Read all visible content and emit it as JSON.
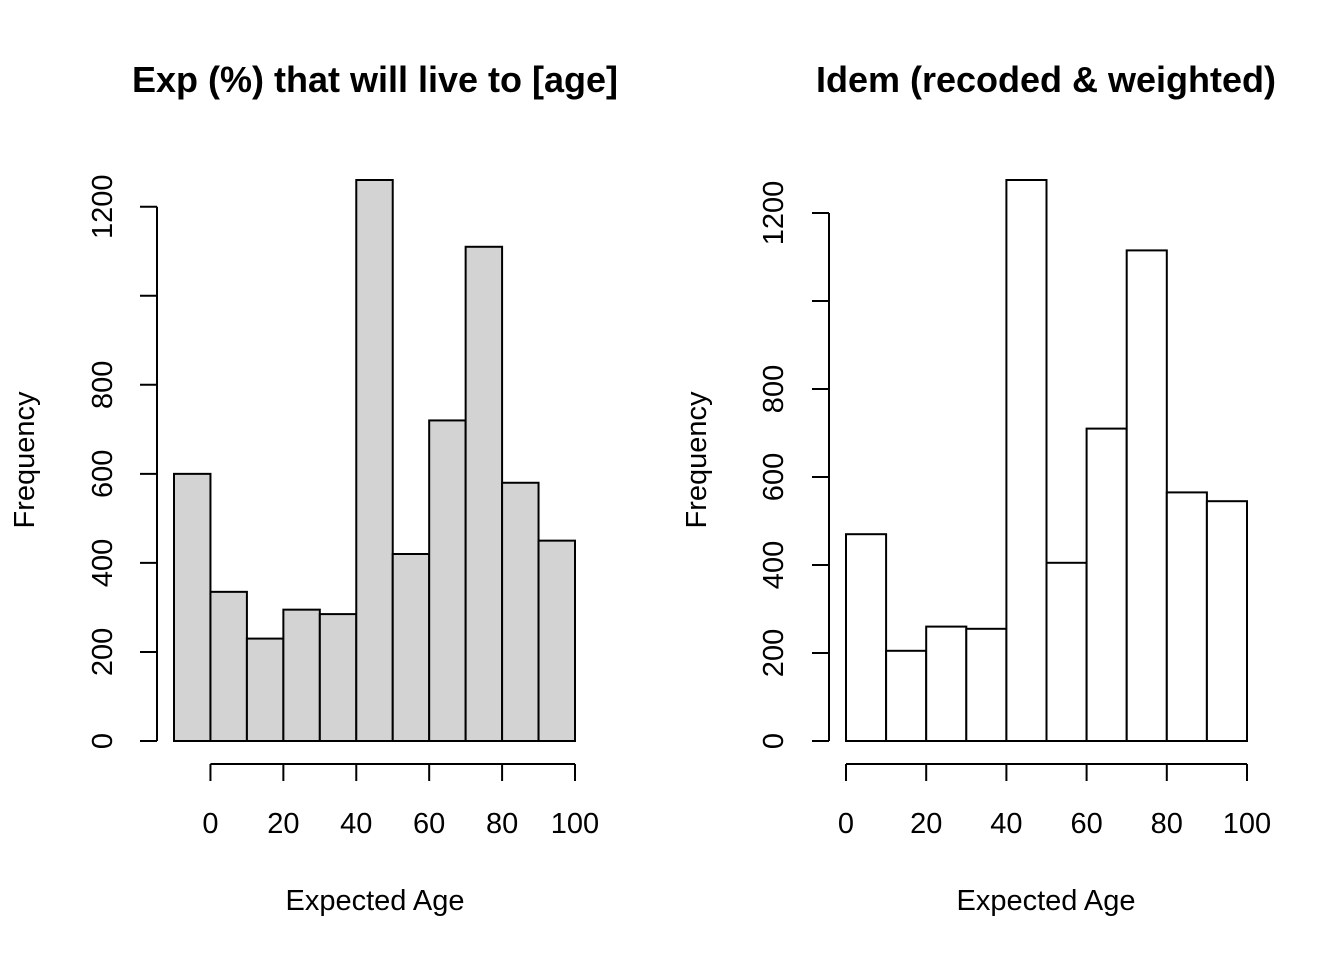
{
  "chart_data": [
    {
      "type": "bar",
      "title": "Exp (%) that will live to [age]",
      "xlabel": "Expected Age",
      "ylabel": "Frequency",
      "bar_fill": "#d3d3d3",
      "bar_stroke": "#000000",
      "xlim": [
        -10,
        100
      ],
      "ylim": [
        0,
        1260
      ],
      "x_ticks": [
        0,
        20,
        40,
        60,
        80,
        100
      ],
      "y_ticks": [
        0,
        200,
        400,
        600,
        800,
        1000,
        1200
      ],
      "y_tick_labels": [
        "0",
        "200",
        "400",
        "600",
        "800",
        "",
        "1200"
      ],
      "bins": [
        {
          "start": -10,
          "end": 0,
          "count": 600
        },
        {
          "start": 0,
          "end": 10,
          "count": 335
        },
        {
          "start": 10,
          "end": 20,
          "count": 230
        },
        {
          "start": 20,
          "end": 30,
          "count": 295
        },
        {
          "start": 30,
          "end": 40,
          "count": 285
        },
        {
          "start": 40,
          "end": 50,
          "count": 1260
        },
        {
          "start": 50,
          "end": 60,
          "count": 420
        },
        {
          "start": 60,
          "end": 70,
          "count": 720
        },
        {
          "start": 70,
          "end": 80,
          "count": 1110
        },
        {
          "start": 80,
          "end": 90,
          "count": 580
        },
        {
          "start": 90,
          "end": 100,
          "count": 450
        }
      ]
    },
    {
      "type": "bar",
      "title": "Idem  (recoded & weighted)",
      "xlabel": "Expected Age",
      "ylabel": "Frequency",
      "bar_fill": "#ffffff",
      "bar_stroke": "#000000",
      "xlim": [
        0,
        100
      ],
      "ylim": [
        0,
        1275
      ],
      "x_ticks": [
        0,
        20,
        40,
        60,
        80,
        100
      ],
      "y_ticks": [
        0,
        200,
        400,
        600,
        800,
        1000,
        1200
      ],
      "y_tick_labels": [
        "0",
        "200",
        "400",
        "600",
        "800",
        "",
        "1200"
      ],
      "bins": [
        {
          "start": 0,
          "end": 10,
          "count": 470
        },
        {
          "start": 10,
          "end": 20,
          "count": 205
        },
        {
          "start": 20,
          "end": 30,
          "count": 260
        },
        {
          "start": 30,
          "end": 40,
          "count": 255
        },
        {
          "start": 40,
          "end": 50,
          "count": 1275
        },
        {
          "start": 50,
          "end": 60,
          "count": 405
        },
        {
          "start": 60,
          "end": 70,
          "count": 710
        },
        {
          "start": 70,
          "end": 80,
          "count": 1115
        },
        {
          "start": 80,
          "end": 90,
          "count": 565
        },
        {
          "start": 90,
          "end": 100,
          "count": 545
        }
      ]
    }
  ]
}
